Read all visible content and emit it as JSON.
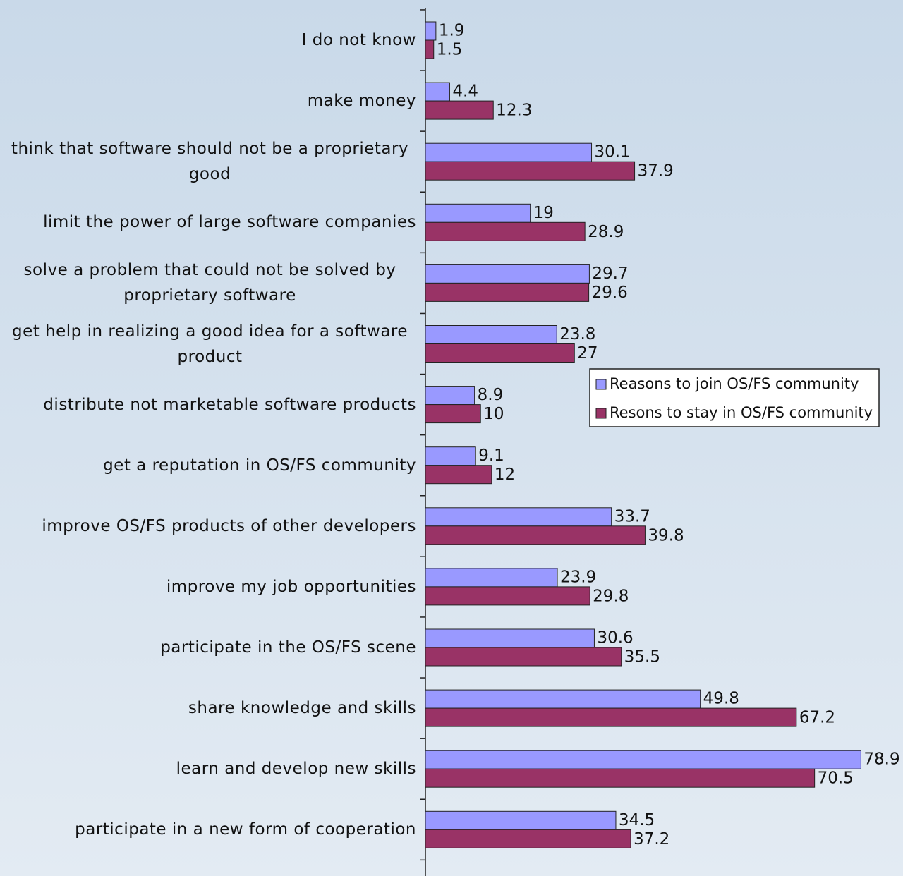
{
  "chart_data": {
    "type": "bar",
    "orientation": "horizontal",
    "categories": [
      "I do not know",
      "make money",
      "think that software should not be a proprietary good",
      "limit the power of large software companies",
      "solve a problem that could not be solved by proprietary software",
      "get help in realizing a good idea for a software product",
      "distribute not marketable software products",
      "get a reputation in OS/FS community",
      "improve OS/FS products of other developers",
      "improve my job opportunities",
      "participate in the OS/FS scene",
      "share knowledge and skills",
      "learn and develop new skills",
      "participate in a new form of cooperation"
    ],
    "series": [
      {
        "name": "Reasons to join OS/FS community",
        "color": "#9999ff",
        "values": [
          1.9,
          4.4,
          30.1,
          19,
          29.7,
          23.8,
          8.9,
          9.1,
          33.7,
          23.9,
          30.6,
          49.8,
          78.9,
          34.5
        ]
      },
      {
        "name": "Resons to stay in OS/FS community",
        "color": "#993366",
        "values": [
          1.5,
          12.3,
          37.9,
          28.9,
          29.6,
          27,
          10,
          12,
          39.8,
          29.8,
          35.5,
          67.2,
          70.5,
          37.2
        ]
      }
    ],
    "xlim": [
      0,
      80
    ],
    "legend": "right"
  }
}
